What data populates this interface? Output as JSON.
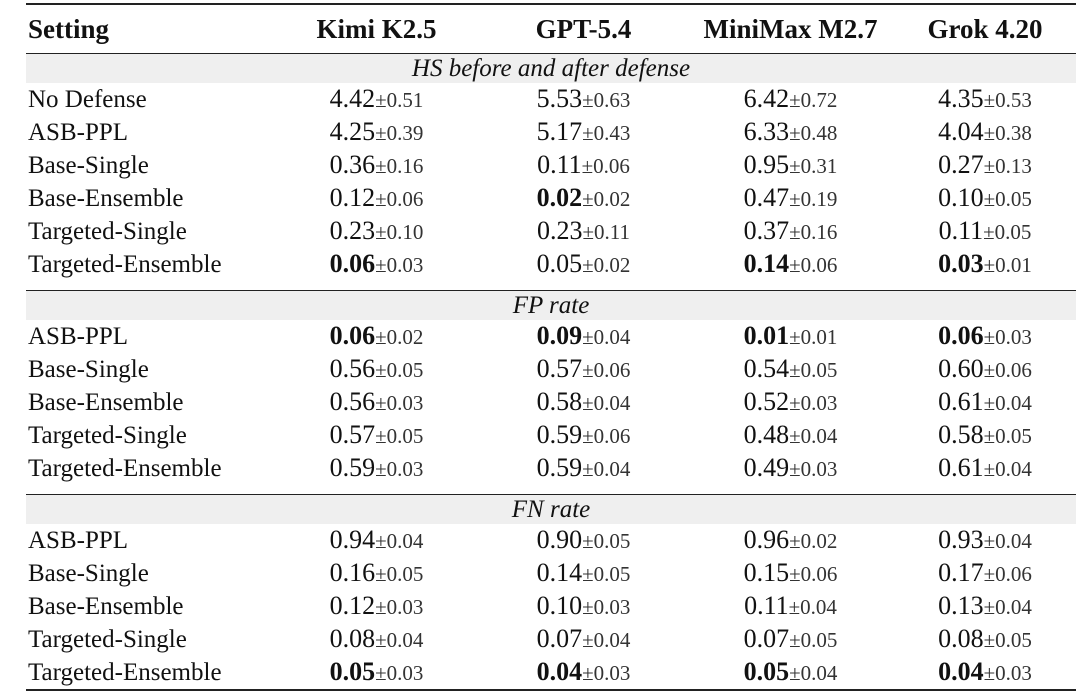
{
  "header": {
    "setting": "Setting",
    "models": [
      "Kimi K2.5",
      "GPT-5.4",
      "MiniMax M2.7",
      "Grok 4.20"
    ]
  },
  "sections": [
    {
      "title": "HS before and after defense",
      "rows": [
        {
          "setting": "No Defense",
          "cells": [
            {
              "mean": "4.42",
              "std": "±0.51",
              "bold": false
            },
            {
              "mean": "5.53",
              "std": "±0.63",
              "bold": false
            },
            {
              "mean": "6.42",
              "std": "±0.72",
              "bold": false
            },
            {
              "mean": "4.35",
              "std": "±0.53",
              "bold": false
            }
          ]
        },
        {
          "setting": "ASB-PPL",
          "cells": [
            {
              "mean": "4.25",
              "std": "±0.39",
              "bold": false
            },
            {
              "mean": "5.17",
              "std": "±0.43",
              "bold": false
            },
            {
              "mean": "6.33",
              "std": "±0.48",
              "bold": false
            },
            {
              "mean": "4.04",
              "std": "±0.38",
              "bold": false
            }
          ]
        },
        {
          "setting": "Base-Single",
          "cells": [
            {
              "mean": "0.36",
              "std": "±0.16",
              "bold": false
            },
            {
              "mean": "0.11",
              "std": "±0.06",
              "bold": false
            },
            {
              "mean": "0.95",
              "std": "±0.31",
              "bold": false
            },
            {
              "mean": "0.27",
              "std": "±0.13",
              "bold": false
            }
          ]
        },
        {
          "setting": "Base-Ensemble",
          "cells": [
            {
              "mean": "0.12",
              "std": "±0.06",
              "bold": false
            },
            {
              "mean": "0.02",
              "std": "±0.02",
              "bold": true
            },
            {
              "mean": "0.47",
              "std": "±0.19",
              "bold": false
            },
            {
              "mean": "0.10",
              "std": "±0.05",
              "bold": false
            }
          ]
        },
        {
          "setting": "Targeted-Single",
          "cells": [
            {
              "mean": "0.23",
              "std": "±0.10",
              "bold": false
            },
            {
              "mean": "0.23",
              "std": "±0.11",
              "bold": false
            },
            {
              "mean": "0.37",
              "std": "±0.16",
              "bold": false
            },
            {
              "mean": "0.11",
              "std": "±0.05",
              "bold": false
            }
          ]
        },
        {
          "setting": "Targeted-Ensemble",
          "cells": [
            {
              "mean": "0.06",
              "std": "±0.03",
              "bold": true
            },
            {
              "mean": "0.05",
              "std": "±0.02",
              "bold": false
            },
            {
              "mean": "0.14",
              "std": "±0.06",
              "bold": true
            },
            {
              "mean": "0.03",
              "std": "±0.01",
              "bold": true
            }
          ]
        }
      ]
    },
    {
      "title": "FP rate",
      "rows": [
        {
          "setting": "ASB-PPL",
          "cells": [
            {
              "mean": "0.06",
              "std": "±0.02",
              "bold": true
            },
            {
              "mean": "0.09",
              "std": "±0.04",
              "bold": true
            },
            {
              "mean": "0.01",
              "std": "±0.01",
              "bold": true
            },
            {
              "mean": "0.06",
              "std": "±0.03",
              "bold": true
            }
          ]
        },
        {
          "setting": "Base-Single",
          "cells": [
            {
              "mean": "0.56",
              "std": "±0.05",
              "bold": false
            },
            {
              "mean": "0.57",
              "std": "±0.06",
              "bold": false
            },
            {
              "mean": "0.54",
              "std": "±0.05",
              "bold": false
            },
            {
              "mean": "0.60",
              "std": "±0.06",
              "bold": false
            }
          ]
        },
        {
          "setting": "Base-Ensemble",
          "cells": [
            {
              "mean": "0.56",
              "std": "±0.03",
              "bold": false
            },
            {
              "mean": "0.58",
              "std": "±0.04",
              "bold": false
            },
            {
              "mean": "0.52",
              "std": "±0.03",
              "bold": false
            },
            {
              "mean": "0.61",
              "std": "±0.04",
              "bold": false
            }
          ]
        },
        {
          "setting": "Targeted-Single",
          "cells": [
            {
              "mean": "0.57",
              "std": "±0.05",
              "bold": false
            },
            {
              "mean": "0.59",
              "std": "±0.06",
              "bold": false
            },
            {
              "mean": "0.48",
              "std": "±0.04",
              "bold": false
            },
            {
              "mean": "0.58",
              "std": "±0.05",
              "bold": false
            }
          ]
        },
        {
          "setting": "Targeted-Ensemble",
          "cells": [
            {
              "mean": "0.59",
              "std": "±0.03",
              "bold": false
            },
            {
              "mean": "0.59",
              "std": "±0.04",
              "bold": false
            },
            {
              "mean": "0.49",
              "std": "±0.03",
              "bold": false
            },
            {
              "mean": "0.61",
              "std": "±0.04",
              "bold": false
            }
          ]
        }
      ]
    },
    {
      "title": "FN rate",
      "rows": [
        {
          "setting": "ASB-PPL",
          "cells": [
            {
              "mean": "0.94",
              "std": "±0.04",
              "bold": false
            },
            {
              "mean": "0.90",
              "std": "±0.05",
              "bold": false
            },
            {
              "mean": "0.96",
              "std": "±0.02",
              "bold": false
            },
            {
              "mean": "0.93",
              "std": "±0.04",
              "bold": false
            }
          ]
        },
        {
          "setting": "Base-Single",
          "cells": [
            {
              "mean": "0.16",
              "std": "±0.05",
              "bold": false
            },
            {
              "mean": "0.14",
              "std": "±0.05",
              "bold": false
            },
            {
              "mean": "0.15",
              "std": "±0.06",
              "bold": false
            },
            {
              "mean": "0.17",
              "std": "±0.06",
              "bold": false
            }
          ]
        },
        {
          "setting": "Base-Ensemble",
          "cells": [
            {
              "mean": "0.12",
              "std": "±0.03",
              "bold": false
            },
            {
              "mean": "0.10",
              "std": "±0.03",
              "bold": false
            },
            {
              "mean": "0.11",
              "std": "±0.04",
              "bold": false
            },
            {
              "mean": "0.13",
              "std": "±0.04",
              "bold": false
            }
          ]
        },
        {
          "setting": "Targeted-Single",
          "cells": [
            {
              "mean": "0.08",
              "std": "±0.04",
              "bold": false
            },
            {
              "mean": "0.07",
              "std": "±0.04",
              "bold": false
            },
            {
              "mean": "0.07",
              "std": "±0.05",
              "bold": false
            },
            {
              "mean": "0.08",
              "std": "±0.05",
              "bold": false
            }
          ]
        },
        {
          "setting": "Targeted-Ensemble",
          "cells": [
            {
              "mean": "0.05",
              "std": "±0.03",
              "bold": true
            },
            {
              "mean": "0.04",
              "std": "±0.03",
              "bold": true
            },
            {
              "mean": "0.05",
              "std": "±0.04",
              "bold": true
            },
            {
              "mean": "0.04",
              "std": "±0.03",
              "bold": true
            }
          ]
        }
      ]
    }
  ]
}
